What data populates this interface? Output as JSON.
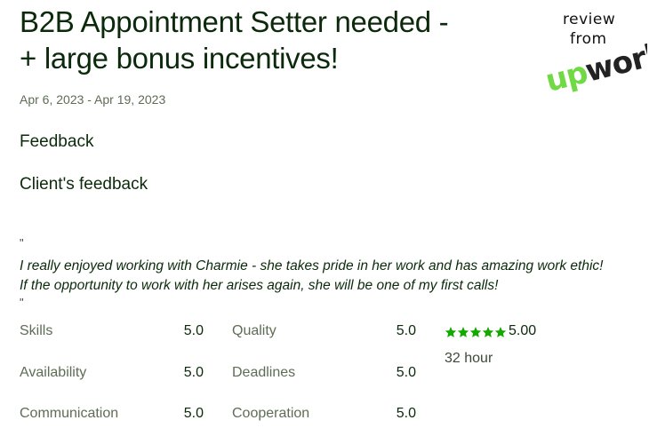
{
  "job": {
    "title_line1": "B2B Appointment Setter needed -",
    "title_line2": "+ large bonus incentives!",
    "date_range": "Apr 6, 2023 - Apr 19, 2023"
  },
  "badge": {
    "review": "review",
    "from": "from",
    "logo_text": "upwork",
    "logo_color": "#6fda44"
  },
  "sections": {
    "feedback": "Feedback",
    "client_feedback": "Client's feedback"
  },
  "quote": {
    "open_mark": "\"",
    "line1": "I really enjoyed working with Charmie - she takes pride in her work and has amazing work ethic!",
    "line2": "If the opportunity to work with her arises again, she will be one of my first calls!",
    "close_mark": "\""
  },
  "ratings": {
    "skills": {
      "label": "Skills",
      "value": "5.0"
    },
    "quality": {
      "label": "Quality",
      "value": "5.0"
    },
    "availability": {
      "label": "Availability",
      "value": "5.0"
    },
    "deadlines": {
      "label": "Deadlines",
      "value": "5.0"
    },
    "communication": {
      "label": "Communication",
      "value": "5.0"
    },
    "cooperation": {
      "label": "Cooperation",
      "value": "5.0"
    }
  },
  "overall": {
    "stars": 5,
    "star_color": "#14a800",
    "score": "5.00",
    "hours": "32 hour"
  }
}
